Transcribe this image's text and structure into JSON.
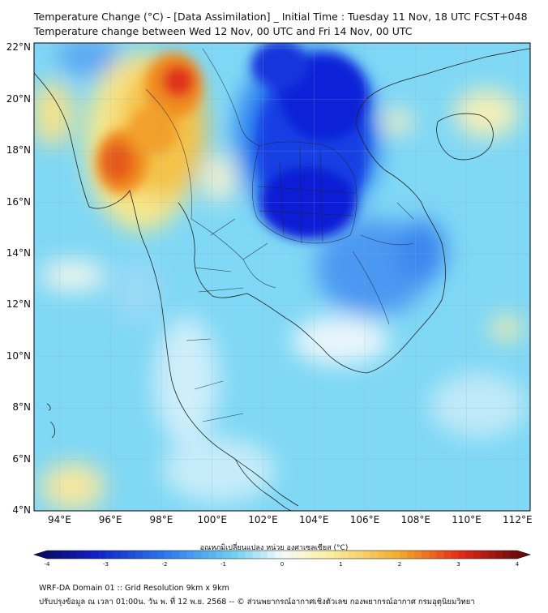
{
  "header": {
    "title_line1": "Temperature Change (°C) - [Data Assimilation] _ Initial Time : Tuesday 11 Nov, 18 UTC FCST+048",
    "title_line2": "Temperature change between Wed 12 Nov, 00 UTC and Fri 14 Nov, 00 UTC"
  },
  "map": {
    "lat_labels": [
      "22°N",
      "20°N",
      "18°N",
      "16°N",
      "14°N",
      "12°N",
      "10°N",
      "8°N",
      "6°N",
      "4°N"
    ],
    "lat_values": [
      22,
      20,
      18,
      16,
      14,
      12,
      10,
      8,
      6,
      4
    ],
    "lon_labels": [
      "94°E",
      "96°E",
      "98°E",
      "100°E",
      "102°E",
      "104°E",
      "106°E",
      "108°E",
      "110°E",
      "112°E"
    ],
    "lon_values": [
      94,
      96,
      98,
      100,
      102,
      104,
      106,
      108,
      110,
      112
    ],
    "lon_range": [
      93,
      112.5
    ],
    "lat_range": [
      4,
      22.2
    ],
    "grid": true,
    "colors": {
      "strong_cool": "#0a1fd6",
      "cool": "#2f7ff0",
      "light_cool": "#7fd8f5",
      "neutral": "#e9f6fb",
      "warm": "#f7e88a",
      "hot": "#f08a1c",
      "very_hot": "#e0301a"
    }
  },
  "colorbar": {
    "label": "อุณหภูมิเปลี่ยนแปลง หน่วย องศาเซลเซียส (°C)",
    "ticks": [
      "-4",
      "-3",
      "-2",
      "-1",
      "0",
      "1",
      "2",
      "3",
      "4"
    ],
    "range": [
      -4,
      4
    ]
  },
  "footer": {
    "line1": "WRF-DA Domain 01 :: Grid Resolution 9km x 9km",
    "line2": "ปรับปรุงข้อมูล ณ เวลา 01:00น. วัน พ. ที่ 12 พ.ย. 2568 -- © ส่วนพยากรณ์อากาศเชิงตัวเลข กองพยากรณ์อากาศ กรมอุตุนิยมวิทยา"
  }
}
